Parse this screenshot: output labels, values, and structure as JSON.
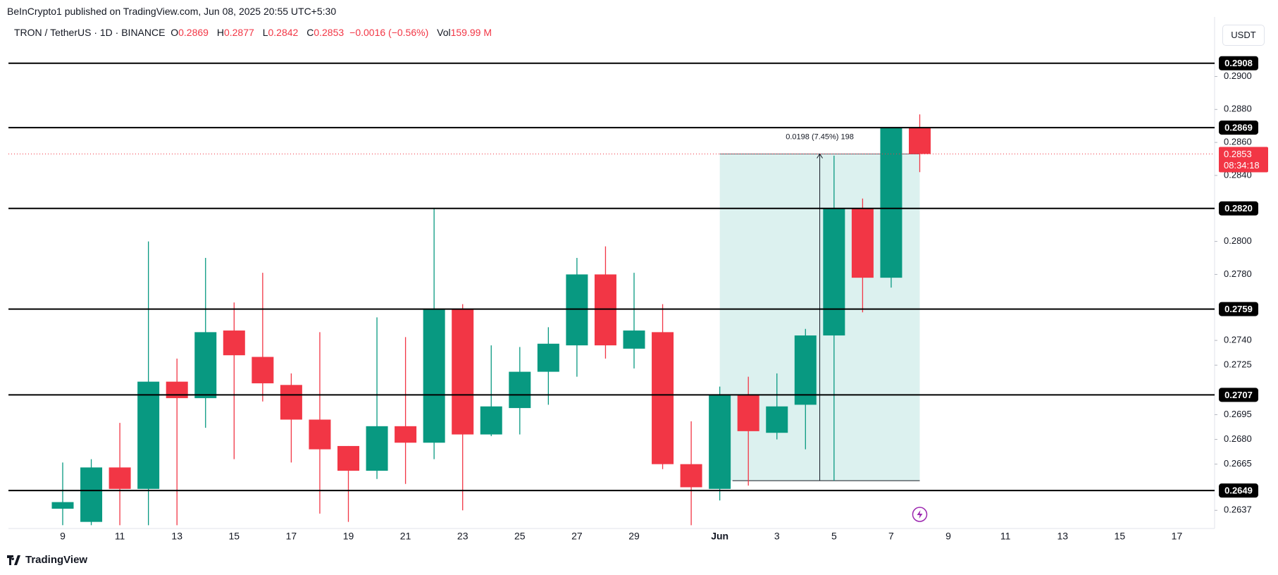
{
  "header": {
    "published": "BeInCrypto1 published on TradingView.com, Jun 08, 2025 20:55 UTC+5:30",
    "symbol": "TRON / TetherUS · 1D · BINANCE",
    "open_label": "O",
    "open": "0.2869",
    "high_label": "H",
    "high": "0.2877",
    "low_label": "L",
    "low": "0.2842",
    "close_label": "C",
    "close": "0.2853",
    "change": "−0.0016 (−0.56%)",
    "volume_label": "Vol",
    "volume": "159.99 M",
    "currency": "USDT"
  },
  "chart_data": {
    "type": "candlestick",
    "categories": [
      "9",
      null,
      "11",
      null,
      "13",
      null,
      "15",
      null,
      "17",
      null,
      "19",
      null,
      "21",
      null,
      "23",
      null,
      "25",
      null,
      "27",
      null,
      "29",
      null,
      null,
      "Jun",
      null,
      "3",
      null,
      "5",
      null,
      "7",
      null,
      "9",
      null,
      "11",
      null,
      "13",
      null,
      "15",
      null,
      "17"
    ],
    "open": [
      0.2638,
      0.263,
      0.2663,
      0.265,
      0.2715,
      0.2705,
      0.2746,
      0.273,
      0.2713,
      0.2692,
      0.2676,
      0.2661,
      0.2688,
      0.2678,
      0.2759,
      0.2683,
      0.2699,
      0.2721,
      0.2737,
      0.278,
      0.2735,
      0.2745,
      0.2665,
      0.265,
      0.2707,
      0.2684,
      0.2701,
      0.2743,
      0.282,
      0.2778,
      0.2869,
      null,
      null,
      null,
      null,
      null,
      null,
      null,
      null,
      null
    ],
    "high": [
      0.2666,
      0.2668,
      0.269,
      0.28,
      0.2729,
      0.279,
      0.2763,
      0.2781,
      0.272,
      0.2745,
      0.2676,
      0.2754,
      0.2742,
      0.282,
      0.2762,
      0.2737,
      0.2736,
      0.2748,
      0.279,
      0.2797,
      0.2781,
      0.2762,
      0.2691,
      0.2712,
      0.2718,
      0.272,
      0.2747,
      0.2852,
      0.2826,
      0.2869,
      0.2877,
      null,
      null,
      null,
      null,
      null,
      null,
      null,
      null,
      null
    ],
    "low": [
      0.2628,
      0.2628,
      0.2628,
      0.2628,
      0.2628,
      0.2687,
      0.2668,
      0.2703,
      0.2666,
      0.2635,
      0.263,
      0.2656,
      0.2653,
      0.2668,
      0.2637,
      0.2682,
      0.2683,
      0.2701,
      0.2718,
      0.2729,
      0.2723,
      0.2662,
      0.2628,
      0.2643,
      0.2652,
      0.268,
      0.2674,
      0.2655,
      0.2757,
      0.2772,
      0.2842,
      null,
      null,
      null,
      null,
      null,
      null,
      null,
      null,
      null
    ],
    "close": [
      0.2642,
      0.2663,
      0.265,
      0.2715,
      0.2705,
      0.2745,
      0.2731,
      0.2714,
      0.2692,
      0.2674,
      0.2661,
      0.2688,
      0.2678,
      0.2759,
      0.2683,
      0.27,
      0.2721,
      0.2738,
      0.278,
      0.2737,
      0.2746,
      0.2665,
      0.2651,
      0.2707,
      0.2685,
      0.27,
      0.2743,
      0.282,
      0.2778,
      0.2869,
      0.2853,
      null,
      null,
      null,
      null,
      null,
      null,
      null,
      null,
      null
    ],
    "up_color": "#089981",
    "down_color": "#f23645",
    "ylim": [
      0.2626,
      0.2919
    ],
    "yticks": [
      0.2637,
      0.2665,
      {
        "value": 0.268,
        "label": "0.2680"
      },
      0.2695,
      0.2725,
      {
        "value": 0.274,
        "label": "0.2740"
      },
      {
        "value": 0.278,
        "label": "0.2780"
      },
      {
        "value": 0.28,
        "label": "0.2800"
      },
      {
        "value": 0.284,
        "label": "0.2840"
      },
      {
        "value": 0.286,
        "label": "0.2860"
      },
      {
        "value": 0.288,
        "label": "0.2880"
      },
      {
        "value": 0.29,
        "label": "0.2900"
      }
    ],
    "levels": [
      0.2908,
      0.2869,
      {
        "value": 0.282,
        "label": "0.2820"
      },
      0.2759,
      0.2707,
      0.2649
    ],
    "level_color": "#000000",
    "last_price": 0.2853,
    "countdown": "08:34:18",
    "last_color": "#f23645",
    "measure": {
      "label": "0.0198 (7.45%) 198",
      "low": 0.2655,
      "high": 0.2853,
      "color": "#b2dfdb"
    }
  },
  "footer": {
    "brand": "TradingView"
  }
}
